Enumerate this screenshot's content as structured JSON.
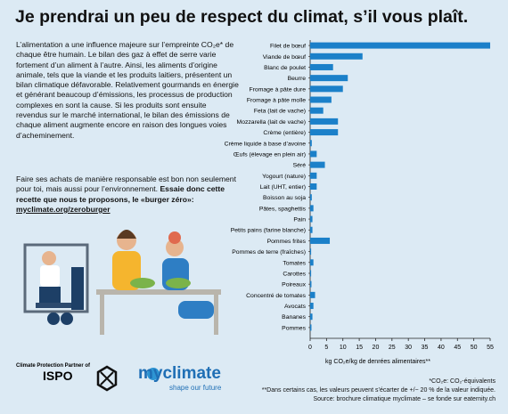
{
  "header": {
    "title": "Je prendrai un peu de respect du climat, s’il vous plaît."
  },
  "intro": {
    "paragraph": "L’alimentation a une influence majeure sur l’empreinte CO₂e* de chaque être humain. Le bilan des gaz à effet de serre varie fortement d’un aliment à l’autre. Ainsi, les aliments d’origine animale, tels que la viande et les produits laitiers, présentent un bilan climatique défavorable. Relativement gourmands en énergie et générant beaucoup d’émissions, les processus de production complexes en sont la cause. Si les produits sont ensuite revendus sur le marché international, le bilan des émissions de chaque aliment augmente encore en raison des longues voies d’acheminement.",
    "cta_text": "Faire ses achats de manière responsable est bon non seulement pour toi, mais aussi pour l’environnement. ",
    "cta_bold": "Essaie donc cette recette que nous te proposons, le «burger zéro»:",
    "cta_link": "myclimate.org/zeroburger"
  },
  "logos": {
    "partner_caption": "Climate Protection Partner of",
    "ispo": "ISPO",
    "myclimate": "myclimate",
    "tagline": "shape our future"
  },
  "footnotes": [
    "*CO₂e: CO₂-équivalents",
    "**Dans certains cas, les valeurs peuvent s’écarter de +/− 20 % de la valeur indiquée.",
    "Source: brochure climatique myclimate – se fonde sur eaternity.ch"
  ],
  "chart_data": {
    "type": "hbar",
    "x_label": "kg CO₂e/kg de denrées alimentaires**",
    "categories": [
      "Filet de bœuf",
      "Viande de bœuf",
      "Blanc de poulet",
      "Beurre",
      "Fromage à pâte dure",
      "Fromage à pâte molle",
      "Feta (lait de vache)",
      "Mozzarella (lait de vache)",
      "Crème (entière)",
      "Crème liquide à base d’avoine",
      "Œufs (élevage en plein air)",
      "Séré",
      "Yogourt (nature)",
      "Lait (UHT, entier)",
      "Boisson au soja",
      "Pâtes, spaghettis",
      "Pain",
      "Petits pains (farine blanche)",
      "Pommes frites",
      "Pommes de terre (fraîches)",
      "Tomates",
      "Carottes",
      "Poireaux",
      "Concentré de tomates",
      "Avocats",
      "Bananes",
      "Pommes"
    ],
    "values": [
      55,
      16,
      7,
      11.5,
      10,
      6.5,
      4,
      8.5,
      8.5,
      0.5,
      2,
      4.5,
      2,
      2,
      0.5,
      1,
      0.7,
      0.7,
      6,
      0.3,
      1,
      0.3,
      0.4,
      1.5,
      1,
      0.7,
      0.4
    ],
    "color": "#1b80c9",
    "xlim": [
      0,
      55
    ],
    "xticks": [
      0,
      5,
      10,
      15,
      20,
      25,
      30,
      35,
      40,
      45,
      50,
      55
    ]
  }
}
